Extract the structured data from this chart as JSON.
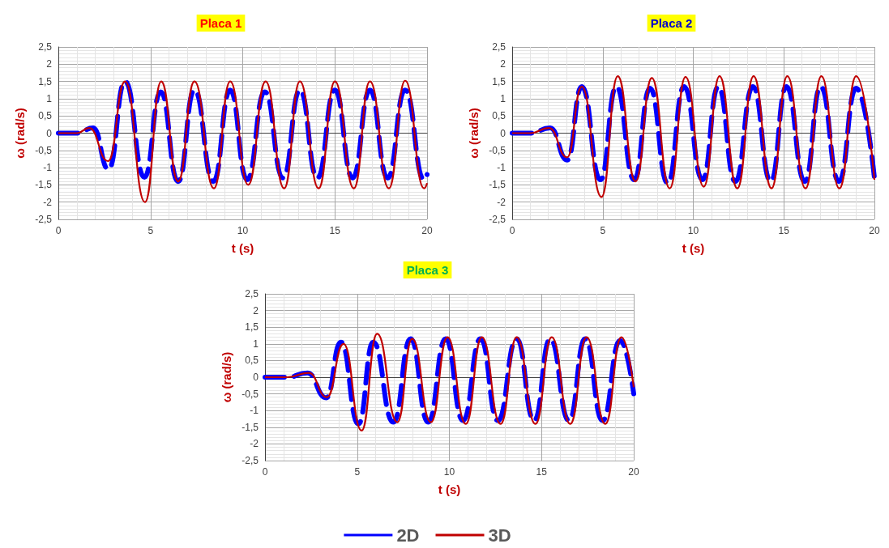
{
  "chart_data": [
    {
      "type": "line",
      "title": "Placa 1",
      "xlabel": "t (s)",
      "ylabel": "ω (rad/s)",
      "xlim": [
        0,
        20
      ],
      "xticks": [
        0,
        5,
        10,
        15,
        20
      ],
      "ylim": [
        -2.5,
        2.5
      ],
      "yticks": [
        {
          "value": -2.5,
          "label": "-2,5"
        },
        -2,
        {
          "value": -1.5,
          "label": "-1,5"
        },
        -1,
        {
          "value": -0.5,
          "label": "-0,5"
        },
        0,
        {
          "value": 0.5,
          "label": "0,5"
        },
        1,
        {
          "value": 1.5,
          "label": "1,5"
        },
        2,
        {
          "value": 2.5,
          "label": "2,5"
        }
      ],
      "grid": true,
      "legend": false,
      "marker": "none",
      "series": [
        {
          "color": "#0000ff",
          "line_style": "dashed",
          "x": [
            0,
            1,
            1.89,
            2.72,
            3.62,
            4.67,
            5.55,
            6.5,
            7.38,
            8.41,
            9.32,
            10.24,
            11.2,
            12.19,
            13.1,
            14.05,
            15.0,
            15.96,
            16.9,
            17.86,
            18.81,
            19.84,
            20
          ],
          "values": [
            0,
            0,
            0.15,
            -1.05,
            1.5,
            -1.28,
            1.2,
            -1.4,
            1.25,
            -1.4,
            1.25,
            -1.35,
            1.2,
            -1.3,
            1.25,
            -1.3,
            1.25,
            -1.3,
            1.25,
            -1.3,
            1.25,
            -1.35,
            -1.2
          ]
        },
        {
          "color": "#c00000",
          "line_style": "solid",
          "x": [
            0,
            1,
            1.67,
            2.7,
            3.62,
            4.7,
            5.58,
            6.5,
            7.38,
            8.44,
            9.32,
            10.3,
            11.24,
            12.25,
            13.1,
            14.12,
            15.0,
            16.03,
            16.9,
            17.93,
            18.81,
            19.84,
            20
          ],
          "values": [
            0,
            0,
            0.15,
            -0.81,
            1.5,
            -2.0,
            1.5,
            -1.4,
            1.5,
            -1.6,
            1.5,
            -1.5,
            1.5,
            -1.6,
            1.5,
            -1.6,
            1.5,
            -1.6,
            1.5,
            -1.6,
            1.52,
            -1.6,
            -1.45
          ]
        }
      ]
    },
    {
      "type": "line",
      "title": "Placa 2",
      "xlabel": "t (s)",
      "ylabel": "ω (rad/s)",
      "xlim": [
        0,
        20
      ],
      "xticks": [
        0,
        5,
        10,
        15,
        20
      ],
      "ylim": [
        -2.5,
        2.5
      ],
      "yticks": [
        {
          "value": -2.5,
          "label": "-2,5"
        },
        -2,
        {
          "value": -1.5,
          "label": "-1,5"
        },
        -1,
        {
          "value": -0.5,
          "label": "-0,5"
        },
        0,
        {
          "value": 0.5,
          "label": "0,5"
        },
        1,
        {
          "value": 1.5,
          "label": "1,5"
        },
        2,
        {
          "value": 2.5,
          "label": "2,5"
        }
      ],
      "grid": true,
      "legend": false,
      "marker": "none",
      "series": [
        {
          "color": "#0000ff",
          "line_style": "dashed",
          "x": [
            0,
            1,
            2.1,
            3.04,
            3.84,
            4.88,
            5.75,
            6.74,
            7.61,
            8.59,
            9.49,
            10.51,
            11.38,
            12.32,
            13.29,
            14.28,
            15.14,
            16.16,
            17.03,
            18.04,
            18.99,
            20
          ],
          "values": [
            0,
            0,
            0.15,
            -0.78,
            1.35,
            -1.35,
            1.35,
            -1.35,
            1.3,
            -1.45,
            1.35,
            -1.35,
            1.35,
            -1.4,
            1.35,
            -1.4,
            1.35,
            -1.4,
            1.35,
            -1.4,
            1.3,
            -1.3
          ]
        },
        {
          "color": "#c00000",
          "line_style": "solid",
          "x": [
            0,
            1,
            2.03,
            3.04,
            3.84,
            4.93,
            5.83,
            6.81,
            7.71,
            8.7,
            9.57,
            10.58,
            11.45,
            12.43,
            13.33,
            14.32,
            15.19,
            16.2,
            17.07,
            18.07,
            18.99,
            20
          ],
          "values": [
            0,
            0,
            0.15,
            -0.7,
            1.35,
            -1.85,
            1.65,
            -1.4,
            1.6,
            -1.6,
            1.63,
            -1.55,
            1.65,
            -1.6,
            1.65,
            -1.6,
            1.65,
            -1.6,
            1.65,
            -1.6,
            1.65,
            -1.35
          ]
        }
      ]
    },
    {
      "type": "line",
      "title": "Placa 3",
      "xlabel": "t (s)",
      "ylabel": "ω (rad/s)",
      "xlim": [
        0,
        20
      ],
      "xticks": [
        0,
        5,
        10,
        15,
        20
      ],
      "ylim": [
        -2.5,
        2.5
      ],
      "yticks": [
        {
          "value": -2.5,
          "label": "-2,5"
        },
        -2,
        {
          "value": -1.5,
          "label": "-1,5"
        },
        -1,
        {
          "value": -0.5,
          "label": "-0,5"
        },
        0,
        {
          "value": 0.5,
          "label": "0,5"
        },
        1,
        {
          "value": 1.5,
          "label": "1,5"
        },
        2,
        {
          "value": 2.5,
          "label": "2,5"
        }
      ],
      "grid": true,
      "legend": "bottom",
      "marker": "none",
      "series": [
        {
          "name": "2D",
          "color": "#0000ff",
          "line_style": "dashed",
          "x": [
            0,
            1.2,
            2.3,
            3.32,
            4.12,
            5.07,
            5.87,
            6.96,
            7.9,
            8.85,
            9.8,
            10.74,
            11.69,
            12.63,
            13.65,
            14.6,
            15.47,
            16.49,
            17.37,
            18.31,
            19.26,
            20
          ],
          "values": [
            0,
            0,
            0.13,
            -0.62,
            1.05,
            -1.4,
            1.05,
            -1.35,
            1.15,
            -1.35,
            1.15,
            -1.3,
            1.15,
            -1.3,
            1.15,
            -1.3,
            1.15,
            -1.3,
            1.15,
            -1.3,
            1.1,
            -0.5
          ]
        },
        {
          "name": "3D",
          "color": "#c00000",
          "line_style": "solid",
          "x": [
            0,
            1.2,
            2.37,
            3.36,
            4.26,
            5.24,
            6.08,
            7.18,
            7.98,
            9.0,
            9.9,
            10.89,
            11.76,
            12.78,
            13.65,
            14.67,
            15.55,
            16.56,
            17.44,
            18.46,
            19.33,
            20
          ],
          "values": [
            0,
            0,
            0.13,
            -0.6,
            1.0,
            -1.6,
            1.3,
            -1.35,
            1.15,
            -1.35,
            1.2,
            -1.4,
            1.2,
            -1.4,
            1.2,
            -1.4,
            1.2,
            -1.4,
            1.2,
            -1.4,
            1.2,
            -0.3
          ]
        }
      ]
    }
  ]
}
